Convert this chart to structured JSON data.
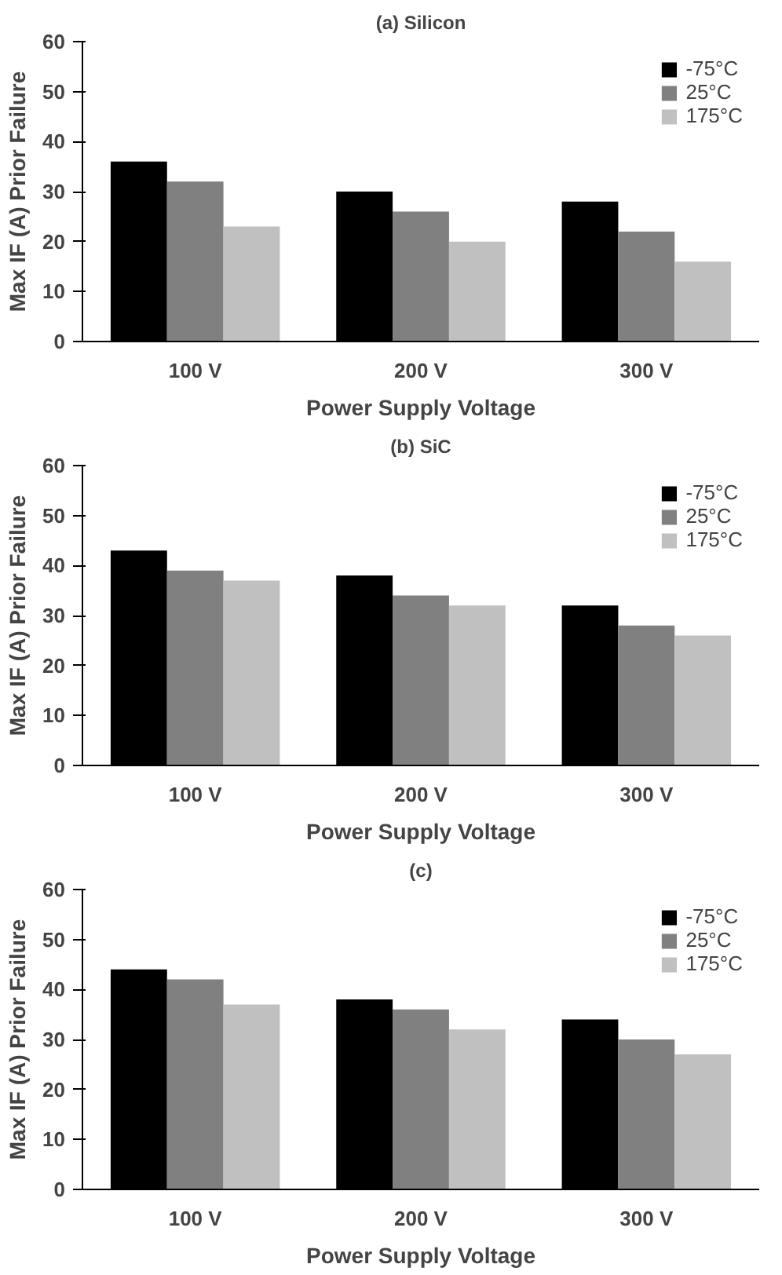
{
  "chart_data": [
    {
      "type": "bar",
      "title": "(a) Silicon",
      "xlabel": "Power Supply Voltage",
      "ylabel": "Max IF (A) Prior Failure",
      "categories": [
        "100 V",
        "200 V",
        "300 V"
      ],
      "series": [
        {
          "name": "-75°C",
          "color": "#000000",
          "values": [
            36,
            30,
            28
          ]
        },
        {
          "name": "25°C",
          "color": "#808080",
          "values": [
            32,
            26,
            22
          ]
        },
        {
          "name": "175°C",
          "color": "#c0c0c0",
          "values": [
            23,
            20,
            16
          ]
        }
      ],
      "ylim": [
        0,
        60
      ],
      "yticks": [
        0,
        10,
        20,
        30,
        40,
        50,
        60
      ],
      "grid": false,
      "legend": "top right"
    },
    {
      "type": "bar",
      "title": "(b) SiC",
      "xlabel": "Power Supply Voltage",
      "ylabel": "Max IF (A) Prior Failure",
      "categories": [
        "100 V",
        "200 V",
        "300 V"
      ],
      "series": [
        {
          "name": "-75°C",
          "color": "#000000",
          "values": [
            43,
            38,
            32
          ]
        },
        {
          "name": "25°C",
          "color": "#808080",
          "values": [
            39,
            34,
            28
          ]
        },
        {
          "name": "175°C",
          "color": "#c0c0c0",
          "values": [
            37,
            32,
            26
          ]
        }
      ],
      "ylim": [
        0,
        60
      ],
      "yticks": [
        0,
        10,
        20,
        30,
        40,
        50,
        60
      ],
      "grid": false,
      "legend": "top right"
    },
    {
      "type": "bar",
      "title": "(c)",
      "xlabel": "Power Supply Voltage",
      "ylabel": "Max IF (A) Prior Failure",
      "categories": [
        "100 V",
        "200 V",
        "300 V"
      ],
      "series": [
        {
          "name": "-75°C",
          "color": "#000000",
          "values": [
            44,
            38,
            34
          ]
        },
        {
          "name": "25°C",
          "color": "#808080",
          "values": [
            42,
            36,
            30
          ]
        },
        {
          "name": "175°C",
          "color": "#c0c0c0",
          "values": [
            37,
            32,
            27
          ]
        }
      ],
      "ylim": [
        0,
        60
      ],
      "yticks": [
        0,
        10,
        20,
        30,
        40,
        50,
        60
      ],
      "grid": false,
      "legend": "top right"
    }
  ]
}
